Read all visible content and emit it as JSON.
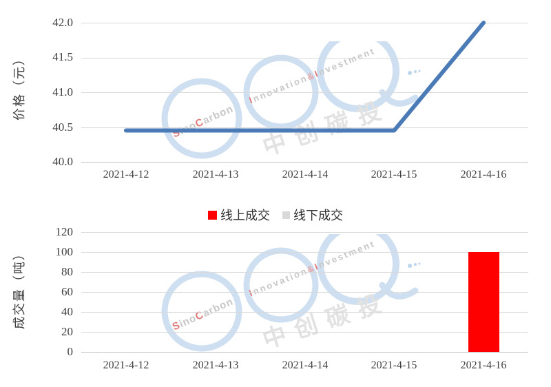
{
  "colors": {
    "line": "#4b7bb7",
    "bar_online": "#ff0000",
    "legend_offline": "#d9d9d9",
    "gridline": "#d9d9d9",
    "watermark_blue": "#cddff0",
    "watermark_red": "#e07a7a",
    "watermark_gray": "#c7c7c7"
  },
  "watermark": {
    "sino_s": "S",
    "sino_ino": "ino",
    "sino_c": "C",
    "sino_arbon": "arbon",
    "innov_i1": "I",
    "innov_rest1": "nnovation",
    "innov_amp": "&",
    "innov_i2": "I",
    "innov_rest2": "nvestment",
    "cn": "中创碳投"
  },
  "chart_data": [
    {
      "type": "line",
      "name": "price",
      "title": "",
      "ylabel": "价格（元）",
      "xlabel": "",
      "categories": [
        "2021-4-12",
        "2021-4-13",
        "2021-4-14",
        "2021-4-15",
        "2021-4-16"
      ],
      "series": [
        {
          "name": "价格",
          "color": "#4b7bb7",
          "values": [
            40.45,
            40.45,
            40.45,
            40.45,
            42.0
          ]
        }
      ],
      "ylim": [
        40.0,
        42.0
      ],
      "y_ticks": [
        "42.0",
        "41.5",
        "41.0",
        "40.5",
        "40.0"
      ],
      "grid": true,
      "legend": "none"
    },
    {
      "type": "bar",
      "name": "volume",
      "title": "",
      "ylabel": "成交量（吨）",
      "xlabel": "",
      "categories": [
        "2021-4-12",
        "2021-4-13",
        "2021-4-14",
        "2021-4-15",
        "2021-4-16"
      ],
      "series": [
        {
          "name": "线上成交",
          "color": "#ff0000",
          "values": [
            0,
            0,
            0,
            0,
            100
          ]
        },
        {
          "name": "线下成交",
          "color": "#d9d9d9",
          "values": [
            0,
            0,
            0,
            0,
            0
          ]
        }
      ],
      "ylim": [
        0,
        120
      ],
      "y_ticks": [
        "120",
        "100",
        "80",
        "60",
        "40",
        "20",
        "0"
      ],
      "grid": true,
      "legend_position": "top"
    }
  ]
}
